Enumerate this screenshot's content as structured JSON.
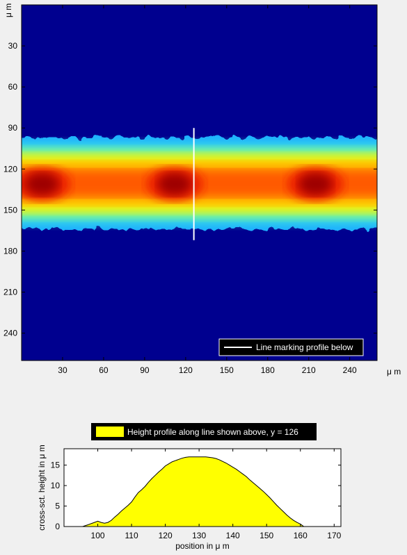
{
  "chart_data": [
    {
      "type": "heatmap",
      "title": "",
      "xlabel": "",
      "ylabel": "",
      "x_unit_label": "μ m",
      "y_unit_label": "μ m",
      "xlim": [
        0,
        260
      ],
      "ylim": [
        0,
        260
      ],
      "y_reversed": true,
      "x_ticks": [
        30,
        60,
        90,
        120,
        150,
        180,
        210,
        240
      ],
      "y_ticks": [
        30,
        60,
        90,
        120,
        150,
        180,
        210,
        240
      ],
      "colormap": "jet",
      "background_color": "#00008f",
      "band": {
        "y_center": 131,
        "y_edge_top": 97,
        "y_edge_bottom": 164,
        "hotspots_x": [
          15,
          112,
          215
        ]
      },
      "profile_line": {
        "x": 126,
        "y_from": 90,
        "y_to": 172,
        "color": "#ffffff"
      },
      "legend": {
        "position": "bottom-right",
        "entries": [
          {
            "label": "Line marking profile below",
            "color": "#ffffff"
          }
        ]
      }
    },
    {
      "type": "area",
      "title": "",
      "legend": {
        "position": "top",
        "entries": [
          {
            "label": "Height profile along line shown above, y = 126",
            "color": "#ffff00"
          }
        ]
      },
      "xlabel": "position in μ m",
      "ylabel": "cross-sct. height in μ m",
      "xlim": [
        90,
        172
      ],
      "ylim": [
        0,
        19
      ],
      "x_ticks": [
        100,
        110,
        120,
        130,
        140,
        150,
        160,
        170
      ],
      "y_ticks": [
        0,
        5,
        10,
        15
      ],
      "fill_color": "#ffff00",
      "x": [
        95.5,
        97,
        98,
        99,
        100,
        101,
        102,
        103,
        104,
        105,
        106,
        107,
        108,
        109,
        110,
        111,
        112,
        113,
        114,
        115,
        116,
        117,
        118,
        119,
        120,
        121,
        122,
        123,
        124,
        125,
        126,
        127,
        128,
        129,
        130,
        131,
        132,
        133,
        134,
        135,
        136,
        137,
        138,
        139,
        140,
        141,
        142,
        143,
        144,
        145,
        146,
        147,
        148,
        149,
        150,
        151,
        152,
        153,
        154,
        155,
        156,
        157,
        158,
        159,
        160,
        161
      ],
      "y": [
        0,
        0.4,
        0.7,
        1.0,
        1.3,
        1.0,
        0.8,
        1.0,
        1.5,
        2.3,
        3.0,
        3.8,
        4.5,
        5.2,
        6.0,
        7.2,
        8.3,
        9.0,
        9.8,
        10.8,
        11.7,
        12.5,
        13.3,
        14.0,
        14.8,
        15.3,
        15.8,
        16.1,
        16.4,
        16.7,
        16.9,
        17.0,
        17.0,
        17.0,
        17.0,
        17.0,
        17.0,
        16.9,
        16.8,
        16.6,
        16.3,
        15.9,
        15.5,
        15.0,
        14.5,
        14.0,
        13.4,
        12.8,
        12.2,
        11.4,
        10.7,
        10.0,
        9.3,
        8.6,
        7.8,
        7.0,
        6.1,
        5.2,
        4.4,
        3.6,
        2.8,
        2.1,
        1.5,
        1.0,
        0.6,
        0
      ]
    }
  ]
}
